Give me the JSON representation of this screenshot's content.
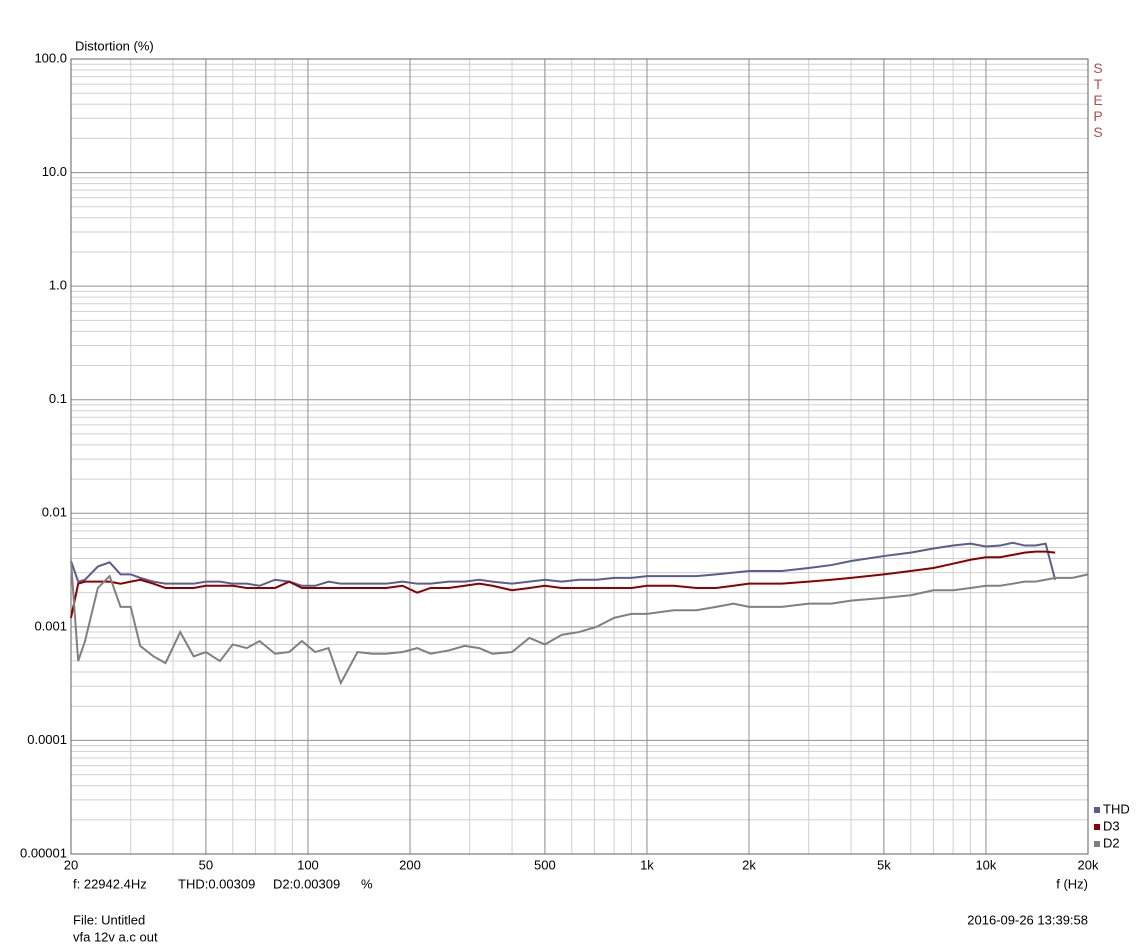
{
  "chart_data": {
    "type": "line",
    "y_label": "Distortion (%)",
    "x_label": "f (Hz)",
    "side_label": "STEPS",
    "log_x": true,
    "log_y": true,
    "grid": true,
    "minor_grid": true,
    "legend": "bottom-right",
    "xlim": [
      20,
      20000
    ],
    "ylim": [
      1e-05,
      100
    ],
    "xticks": [
      20,
      50,
      100,
      200,
      500,
      {
        "value": 1000,
        "label": "1k"
      },
      {
        "value": 2000,
        "label": "2k"
      },
      {
        "value": 5000,
        "label": "5k"
      },
      {
        "value": 10000,
        "label": "10k"
      },
      {
        "value": 20000,
        "label": "20k"
      }
    ],
    "yticks": [
      {
        "value": 1e-05,
        "label": "0.00001"
      },
      {
        "value": 0.0001,
        "label": "0.0001"
      },
      0.001,
      0.01,
      0.1,
      {
        "value": 1,
        "label": "1.0"
      },
      {
        "value": 10,
        "label": "10.0"
      },
      {
        "value": 100,
        "label": "100.0"
      }
    ],
    "x": [
      20,
      21,
      22,
      24,
      26,
      28,
      30,
      32,
      35,
      38,
      42,
      46,
      50,
      55,
      60,
      66,
      72,
      80,
      88,
      96,
      105,
      115,
      125,
      140,
      155,
      170,
      190,
      210,
      230,
      260,
      290,
      320,
      350,
      400,
      450,
      500,
      560,
      630,
      710,
      800,
      900,
      1000,
      1200,
      1400,
      1600,
      1800,
      2000,
      2500,
      3000,
      3500,
      4000,
      5000,
      6000,
      7000,
      8000,
      9000,
      10000,
      11000,
      12000,
      13000,
      14000,
      15000,
      16000,
      17000,
      18000,
      20000
    ],
    "series": [
      {
        "name": "THD",
        "color": "#5c5c8e",
        "values": [
          0.0038,
          0.0025,
          0.0026,
          0.0034,
          0.0037,
          0.0029,
          0.0029,
          0.0027,
          0.0025,
          0.0024,
          0.0024,
          0.0024,
          0.0025,
          0.0025,
          0.0024,
          0.0024,
          0.0023,
          0.0026,
          0.0025,
          0.0023,
          0.0023,
          0.0025,
          0.0024,
          0.0024,
          0.0024,
          0.0024,
          0.0025,
          0.0024,
          0.0024,
          0.0025,
          0.0025,
          0.0026,
          0.0025,
          0.0024,
          0.0025,
          0.0026,
          0.0025,
          0.0026,
          0.0026,
          0.0027,
          0.0027,
          0.0028,
          0.0028,
          0.0028,
          0.0029,
          0.003,
          0.0031,
          0.0031,
          0.0033,
          0.0035,
          0.0038,
          0.0042,
          0.0045,
          0.0049,
          0.0052,
          0.0054,
          0.0051,
          0.0052,
          0.0055,
          0.0052,
          0.0052,
          0.0054,
          0.0026,
          null,
          null,
          null
        ]
      },
      {
        "name": "D3",
        "color": "#8b0000",
        "values": [
          0.0012,
          0.0024,
          0.0025,
          0.0025,
          0.0025,
          0.0024,
          0.0025,
          0.0026,
          0.0024,
          0.0022,
          0.0022,
          0.0022,
          0.0023,
          0.0023,
          0.0023,
          0.0022,
          0.0022,
          0.0022,
          0.0025,
          0.0022,
          0.0022,
          0.0022,
          0.0022,
          0.0022,
          0.0022,
          0.0022,
          0.0023,
          0.002,
          0.0022,
          0.0022,
          0.0023,
          0.0024,
          0.0023,
          0.0021,
          0.0022,
          0.0023,
          0.0022,
          0.0022,
          0.0022,
          0.0022,
          0.0022,
          0.0023,
          0.0023,
          0.0022,
          0.0022,
          0.0023,
          0.0024,
          0.0024,
          0.0025,
          0.0026,
          0.0027,
          0.0029,
          0.0031,
          0.0033,
          0.0036,
          0.0039,
          0.0041,
          0.0041,
          0.0043,
          0.0045,
          0.0046,
          0.0046,
          0.0045,
          null,
          null,
          null
        ]
      },
      {
        "name": "D2",
        "color": "#808080",
        "values": [
          0.0038,
          0.0005,
          0.00075,
          0.0022,
          0.0028,
          0.0015,
          0.0015,
          0.00068,
          0.00055,
          0.00048,
          0.0009,
          0.00055,
          0.0006,
          0.0005,
          0.0007,
          0.00065,
          0.00075,
          0.00058,
          0.0006,
          0.00075,
          0.0006,
          0.00065,
          0.00032,
          0.0006,
          0.00058,
          0.00058,
          0.0006,
          0.00065,
          0.00058,
          0.00062,
          0.00068,
          0.00065,
          0.00058,
          0.0006,
          0.0008,
          0.0007,
          0.00085,
          0.0009,
          0.001,
          0.0012,
          0.0013,
          0.0013,
          0.0014,
          0.0014,
          0.0015,
          0.0016,
          0.0015,
          0.0015,
          0.0016,
          0.0016,
          0.0017,
          0.0018,
          0.0019,
          0.0021,
          0.0021,
          0.0022,
          0.0023,
          0.0023,
          0.0024,
          0.0025,
          0.0025,
          0.0026,
          0.0027,
          0.0027,
          0.0027,
          0.0029
        ]
      }
    ]
  },
  "status": {
    "cursor": "f: 22942.4Hz",
    "thd": "THD:0.00309",
    "d2": "D2:0.00309",
    "unit": "%"
  },
  "file": {
    "name": "File: Untitled",
    "description": "vfa 12v a.c out",
    "timestamp": "2016-09-26 13:39:58"
  }
}
